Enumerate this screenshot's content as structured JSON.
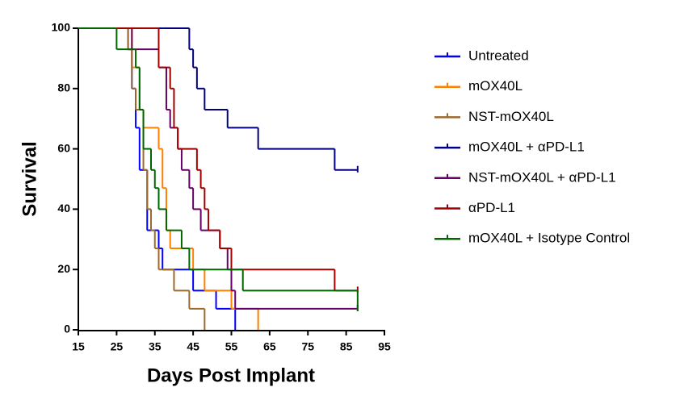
{
  "chart_data": {
    "type": "survival",
    "xlabel": "Days Post Implant",
    "ylabel": "Survival",
    "xlim": [
      15,
      95
    ],
    "xticks": [
      15,
      25,
      35,
      45,
      55,
      65,
      75,
      85,
      95
    ],
    "ylim": [
      0,
      100
    ],
    "yticks": [
      0,
      20,
      40,
      60,
      80,
      100
    ],
    "series": [
      {
        "name": "Untreated",
        "color": "#0000ff",
        "x": [
          15,
          28,
          29,
          30,
          31,
          33,
          36,
          37,
          45,
          51,
          56
        ],
        "values": [
          100,
          93,
          80,
          67,
          53,
          33,
          27,
          20,
          13,
          7,
          0
        ]
      },
      {
        "name": "mOX40L",
        "color": "#ff8000",
        "x": [
          15,
          29,
          31,
          32,
          36,
          37,
          38,
          39,
          45,
          48,
          55,
          62
        ],
        "values": [
          100,
          87,
          73,
          67,
          60,
          47,
          33,
          27,
          20,
          13,
          7,
          0
        ]
      },
      {
        "name": "NST-mOX40L",
        "color": "#9c6a2e",
        "x": [
          15,
          28,
          29,
          30,
          32,
          33,
          34,
          35,
          36,
          40,
          44,
          48
        ],
        "values": [
          100,
          93,
          80,
          73,
          53,
          40,
          33,
          27,
          20,
          13,
          7,
          0
        ]
      },
      {
        "name": "mOX40L + αPD-L1",
        "color": "#000080",
        "x": [
          15,
          44,
          45,
          46,
          48,
          54,
          62,
          82,
          88
        ],
        "values": [
          100,
          93,
          87,
          80,
          73,
          67,
          60,
          53,
          53
        ]
      },
      {
        "name": "NST-mOX40L + αPD-L1",
        "color": "#660066",
        "x": [
          15,
          29,
          36,
          38,
          39,
          41,
          42,
          44,
          45,
          47,
          52,
          54,
          55,
          56,
          88
        ],
        "values": [
          100,
          93,
          87,
          73,
          67,
          60,
          53,
          47,
          40,
          33,
          27,
          20,
          13,
          7,
          7
        ]
      },
      {
        "name": "αPD-L1",
        "color": "#a00000",
        "x": [
          15,
          36,
          39,
          40,
          41,
          46,
          47,
          48,
          49,
          52,
          55,
          82,
          88
        ],
        "values": [
          100,
          87,
          80,
          67,
          60,
          53,
          47,
          40,
          33,
          27,
          20,
          13,
          13
        ]
      },
      {
        "name": "mOX40L + Isotype Control",
        "color": "#006600",
        "x": [
          15,
          25,
          30,
          31,
          32,
          34,
          35,
          36,
          38,
          42,
          44,
          58,
          88
        ],
        "values": [
          100,
          93,
          87,
          73,
          60,
          53,
          47,
          40,
          33,
          27,
          20,
          13,
          7
        ]
      }
    ]
  }
}
